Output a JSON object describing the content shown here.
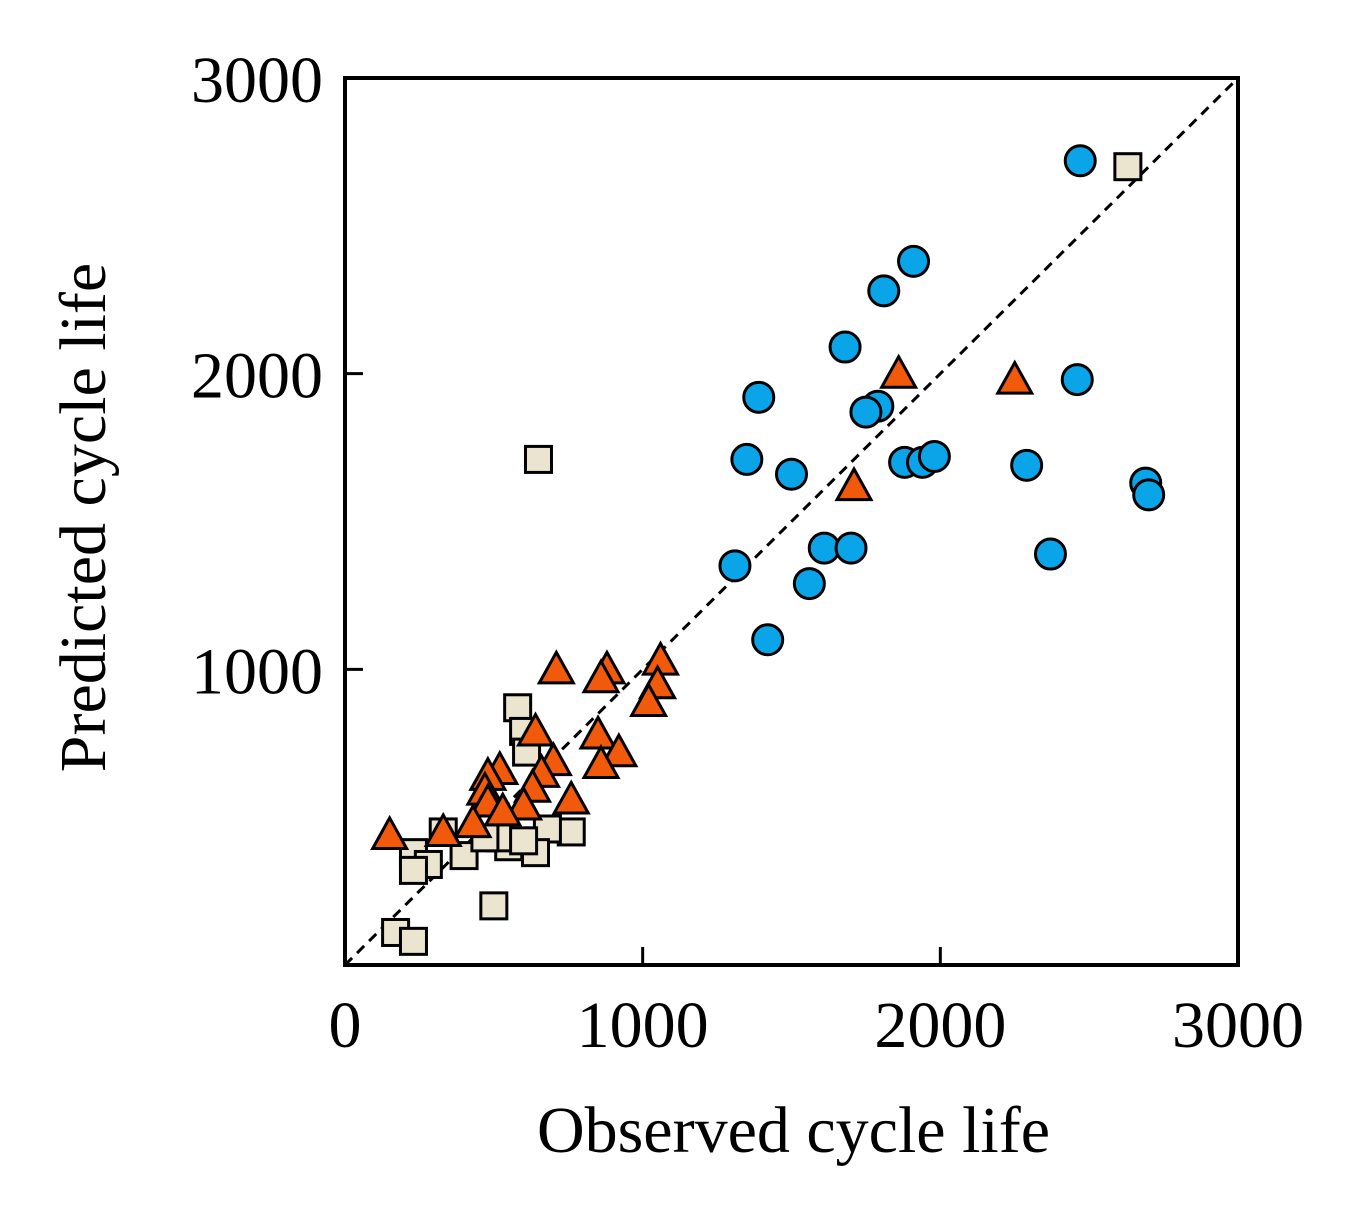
{
  "chart_data": {
    "type": "scatter",
    "title": "",
    "xlabel": "Observed cycle life",
    "ylabel": "Predicted cycle life",
    "xlim": [
      0,
      3000
    ],
    "ylim": [
      0,
      3000
    ],
    "xticks": [
      0,
      1000,
      2000,
      3000
    ],
    "yticks": [
      1000,
      2000,
      3000
    ],
    "xtick_labels": [
      "0",
      "1000",
      "2000",
      "3000"
    ],
    "ytick_labels": [
      "1000",
      "2000",
      "3000"
    ],
    "grid": false,
    "legend": "none",
    "reference_line": {
      "style": "dashed",
      "from": [
        0,
        0
      ],
      "to": [
        3000,
        3000
      ]
    },
    "series": [
      {
        "marker": "circle",
        "color": "#0aa5e8",
        "points": [
          [
            2470,
            2720
          ],
          [
            1910,
            2380
          ],
          [
            1810,
            2280
          ],
          [
            1680,
            2090
          ],
          [
            1390,
            1920
          ],
          [
            2460,
            1980
          ],
          [
            1790,
            1890
          ],
          [
            1750,
            1870
          ],
          [
            1350,
            1710
          ],
          [
            1880,
            1700
          ],
          [
            1940,
            1700
          ],
          [
            1980,
            1720
          ],
          [
            2290,
            1690
          ],
          [
            1500,
            1660
          ],
          [
            2690,
            1630
          ],
          [
            2700,
            1590
          ],
          [
            1610,
            1410
          ],
          [
            1700,
            1410
          ],
          [
            2370,
            1390
          ],
          [
            1310,
            1350
          ],
          [
            1560,
            1290
          ],
          [
            1420,
            1100
          ]
        ]
      },
      {
        "marker": "square",
        "color": "#ebe4cf",
        "points": [
          [
            2630,
            2700
          ],
          [
            650,
            1710
          ],
          [
            580,
            870
          ],
          [
            600,
            790
          ],
          [
            610,
            720
          ],
          [
            760,
            450
          ],
          [
            680,
            460
          ],
          [
            400,
            370
          ],
          [
            640,
            380
          ],
          [
            550,
            400
          ],
          [
            230,
            380
          ],
          [
            280,
            340
          ],
          [
            230,
            320
          ],
          [
            520,
            430
          ],
          [
            600,
            420
          ],
          [
            500,
            200
          ],
          [
            170,
            110
          ],
          [
            230,
            80
          ],
          [
            330,
            450
          ],
          [
            470,
            430
          ]
        ]
      },
      {
        "marker": "triangle",
        "color": "#f05a0a",
        "points": [
          [
            2250,
            1980
          ],
          [
            1860,
            2000
          ],
          [
            1710,
            1620
          ],
          [
            1060,
            1030
          ],
          [
            1050,
            950
          ],
          [
            1020,
            890
          ],
          [
            880,
            1000
          ],
          [
            860,
            970
          ],
          [
            710,
            1000
          ],
          [
            640,
            790
          ],
          [
            850,
            780
          ],
          [
            920,
            720
          ],
          [
            860,
            680
          ],
          [
            520,
            660
          ],
          [
            480,
            640
          ],
          [
            700,
            690
          ],
          [
            660,
            650
          ],
          [
            630,
            600
          ],
          [
            760,
            560
          ],
          [
            470,
            590
          ],
          [
            480,
            550
          ],
          [
            600,
            540
          ],
          [
            530,
            520
          ],
          [
            430,
            480
          ],
          [
            330,
            450
          ],
          [
            150,
            440
          ]
        ]
      }
    ]
  }
}
